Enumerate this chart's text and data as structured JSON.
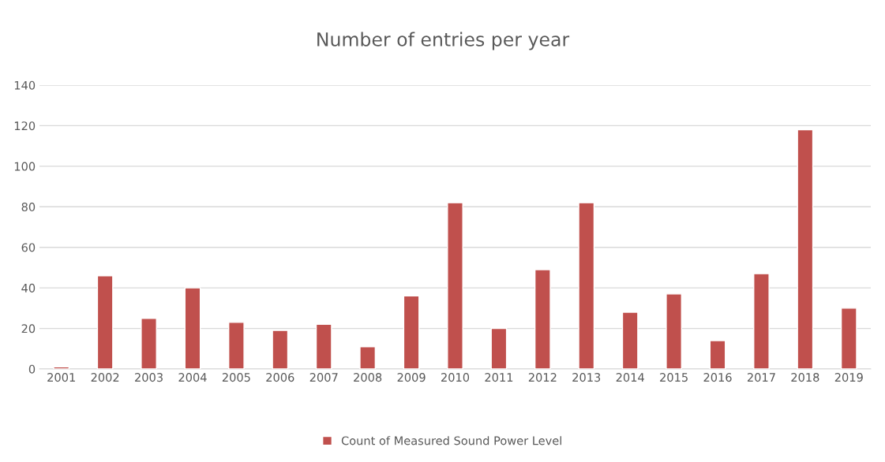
{
  "chart_data": {
    "type": "bar",
    "title": "Number of entries per year",
    "categories": [
      "2001",
      "2002",
      "2003",
      "2004",
      "2005",
      "2006",
      "2007",
      "2008",
      "2009",
      "2010",
      "2011",
      "2012",
      "2013",
      "2014",
      "2015",
      "2016",
      "2017",
      "2018",
      "2019"
    ],
    "series": [
      {
        "name": "Count of Measured Sound Power Level",
        "color": "#c0504d",
        "values": [
          1,
          46,
          25,
          40,
          23,
          19,
          22,
          11,
          36,
          82,
          20,
          49,
          82,
          28,
          37,
          14,
          47,
          118,
          30
        ]
      }
    ],
    "ylim": [
      0,
      140
    ],
    "yticks": [
      0,
      20,
      40,
      60,
      80,
      100,
      120,
      140
    ],
    "grid": "y",
    "legend": "bottom"
  }
}
